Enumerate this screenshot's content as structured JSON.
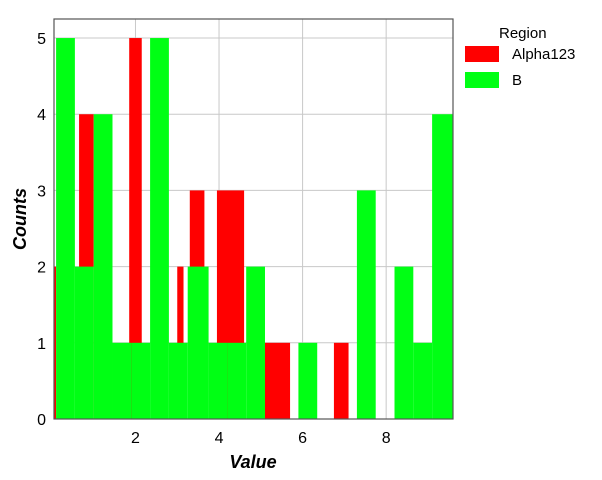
{
  "chart_data": {
    "type": "bar",
    "subtype": "overlaid-histogram",
    "title": "",
    "xlabel": "Value",
    "ylabel": "Counts",
    "xlim": [
      0.05,
      9.6
    ],
    "ylim": [
      0,
      5.25
    ],
    "xticks": [
      2,
      4,
      6,
      8
    ],
    "yticks": [
      0,
      1,
      2,
      3,
      4,
      5
    ],
    "grid": true,
    "legend": {
      "title": "Region",
      "placement": "outside-right-top"
    },
    "series": [
      {
        "name": "Alpha123",
        "color": "#ff0000",
        "bins": [
          {
            "x0": 0.05,
            "x1": 0.1,
            "count": 2
          },
          {
            "x0": 0.65,
            "x1": 1.0,
            "count": 4
          },
          {
            "x0": 1.85,
            "x1": 2.15,
            "count": 5
          },
          {
            "x0": 3.0,
            "x1": 3.15,
            "count": 2
          },
          {
            "x0": 3.3,
            "x1": 3.65,
            "count": 3
          },
          {
            "x0": 3.95,
            "x1": 4.6,
            "count": 3
          },
          {
            "x0": 5.05,
            "x1": 5.7,
            "count": 1
          },
          {
            "x0": 6.75,
            "x1": 7.1,
            "count": 1
          }
        ]
      },
      {
        "name": "B",
        "color": "#00ff14",
        "bins": [
          {
            "x0": 0.1,
            "x1": 0.55,
            "count": 5
          },
          {
            "x0": 0.55,
            "x1": 1.0,
            "count": 2
          },
          {
            "x0": 1.0,
            "x1": 1.45,
            "count": 4
          },
          {
            "x0": 1.45,
            "x1": 1.9,
            "count": 1
          },
          {
            "x0": 1.9,
            "x1": 2.35,
            "count": 1
          },
          {
            "x0": 2.35,
            "x1": 2.8,
            "count": 5
          },
          {
            "x0": 2.8,
            "x1": 3.25,
            "count": 1
          },
          {
            "x0": 3.25,
            "x1": 3.75,
            "count": 2
          },
          {
            "x0": 3.75,
            "x1": 4.2,
            "count": 1
          },
          {
            "x0": 4.2,
            "x1": 4.65,
            "count": 1
          },
          {
            "x0": 4.65,
            "x1": 5.1,
            "count": 2
          },
          {
            "x0": 5.9,
            "x1": 6.35,
            "count": 1
          },
          {
            "x0": 7.3,
            "x1": 7.75,
            "count": 3
          },
          {
            "x0": 8.2,
            "x1": 8.65,
            "count": 2
          },
          {
            "x0": 8.65,
            "x1": 9.1,
            "count": 1
          },
          {
            "x0": 9.1,
            "x1": 9.6,
            "count": 4
          }
        ]
      }
    ]
  }
}
